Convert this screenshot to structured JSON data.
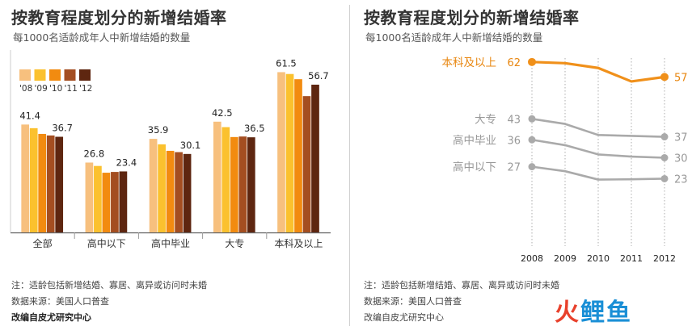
{
  "left_panel": {
    "title": "按教育程度划分的新增结婚率",
    "subtitle": "每1000名适龄成年人中新增结婚的数量",
    "notes": [
      "注：适龄包括新增结婚、寡居、离异或访问时未婚",
      "数据来源：美国人口普查"
    ],
    "credit": "改编自皮尤研究中心"
  },
  "right_panel": {
    "title": "按教育程度划分的新增结婚率",
    "subtitle": "每1000名适龄成年人中新增结婚的数量",
    "notes": [
      "注：适龄包括新增结婚、寡居、离异或访问时未婚",
      "数据来源：美国人口普查"
    ],
    "credit": "改编自皮尤研究中心"
  },
  "watermark": {
    "part1": "火",
    "part2": "鲤鱼"
  },
  "chart_data": [
    {
      "type": "bar",
      "categories": [
        "全部",
        "高中以下",
        "高中毕业",
        "大专",
        "本科及以上"
      ],
      "legend_position": "top-left",
      "ylim": [
        0,
        70
      ],
      "series": [
        {
          "name": "'08",
          "color": "#F7C07E",
          "values": [
            41.4,
            26.8,
            35.9,
            42.5,
            61.5
          ]
        },
        {
          "name": "'09",
          "color": "#FBC12E",
          "values": [
            40.0,
            25.5,
            33.8,
            40.4,
            60.8
          ]
        },
        {
          "name": "'10",
          "color": "#F28B10",
          "values": [
            37.8,
            22.9,
            31.3,
            36.6,
            58.8
          ]
        },
        {
          "name": "'11",
          "color": "#A44E21",
          "values": [
            37.2,
            23.2,
            30.8,
            36.8,
            52.3
          ]
        },
        {
          "name": "'12",
          "color": "#5E2610",
          "values": [
            36.7,
            23.4,
            30.1,
            36.5,
            56.7
          ]
        }
      ],
      "value_labels": [
        {
          "category": 0,
          "first": "41.4",
          "last": "36.7"
        },
        {
          "category": 1,
          "first": "26.8",
          "last": "23.4"
        },
        {
          "category": 2,
          "first": "35.9",
          "last": "30.1"
        },
        {
          "category": 3,
          "first": "42.5",
          "last": "36.5"
        },
        {
          "category": 4,
          "first": "61.5",
          "last": "56.7"
        }
      ]
    },
    {
      "type": "line",
      "x": [
        2008,
        2009,
        2010,
        2011,
        2012
      ],
      "ylim": [
        18,
        66
      ],
      "grid": "vertical",
      "series": [
        {
          "name": "本科及以上",
          "color": "#F0901A",
          "values": [
            62,
            61.6,
            60,
            55.5,
            57
          ],
          "start_label": "62",
          "end_label": "57"
        },
        {
          "name": "大专",
          "color": "#AAAAAA",
          "values": [
            43,
            41.3,
            37.6,
            37.3,
            37
          ],
          "start_label": "43",
          "end_label": "37"
        },
        {
          "name": "高中毕业",
          "color": "#AAAAAA",
          "values": [
            36,
            34.2,
            31.1,
            30.4,
            30
          ],
          "start_label": "36",
          "end_label": "30"
        },
        {
          "name": "高中以下",
          "color": "#AAAAAA",
          "values": [
            27,
            25.5,
            22.7,
            22.8,
            23
          ],
          "start_label": "27",
          "end_label": "23"
        }
      ]
    }
  ]
}
